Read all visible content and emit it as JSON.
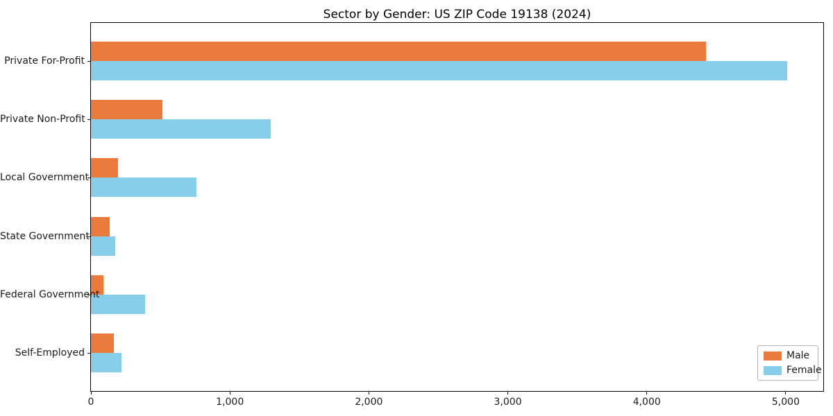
{
  "chart_data": {
    "type": "bar",
    "orientation": "horizontal",
    "title": "Sector by Gender: US ZIP Code 19138 (2024)",
    "categories": [
      "Private For-Profit",
      "Private Non-Profit",
      "Local Government",
      "State Government",
      "Federal Government",
      "Self-Employed"
    ],
    "series": [
      {
        "name": "Male",
        "color": "#ea7b3c",
        "values": [
          4425,
          515,
          195,
          135,
          90,
          165
        ]
      },
      {
        "name": "Female",
        "color": "#87ceeb",
        "values": [
          5010,
          1295,
          760,
          175,
          390,
          220
        ]
      }
    ],
    "xlabel": "",
    "ylabel": "",
    "xlim": [
      0,
      5270
    ],
    "xticks": [
      0,
      1000,
      2000,
      3000,
      4000,
      5000
    ],
    "xtick_labels": [
      "0",
      "1,000",
      "2,000",
      "3,000",
      "4,000",
      "5,000"
    ],
    "grid": false,
    "legend": {
      "position": "lower right",
      "entries": [
        "Male",
        "Female"
      ]
    }
  }
}
